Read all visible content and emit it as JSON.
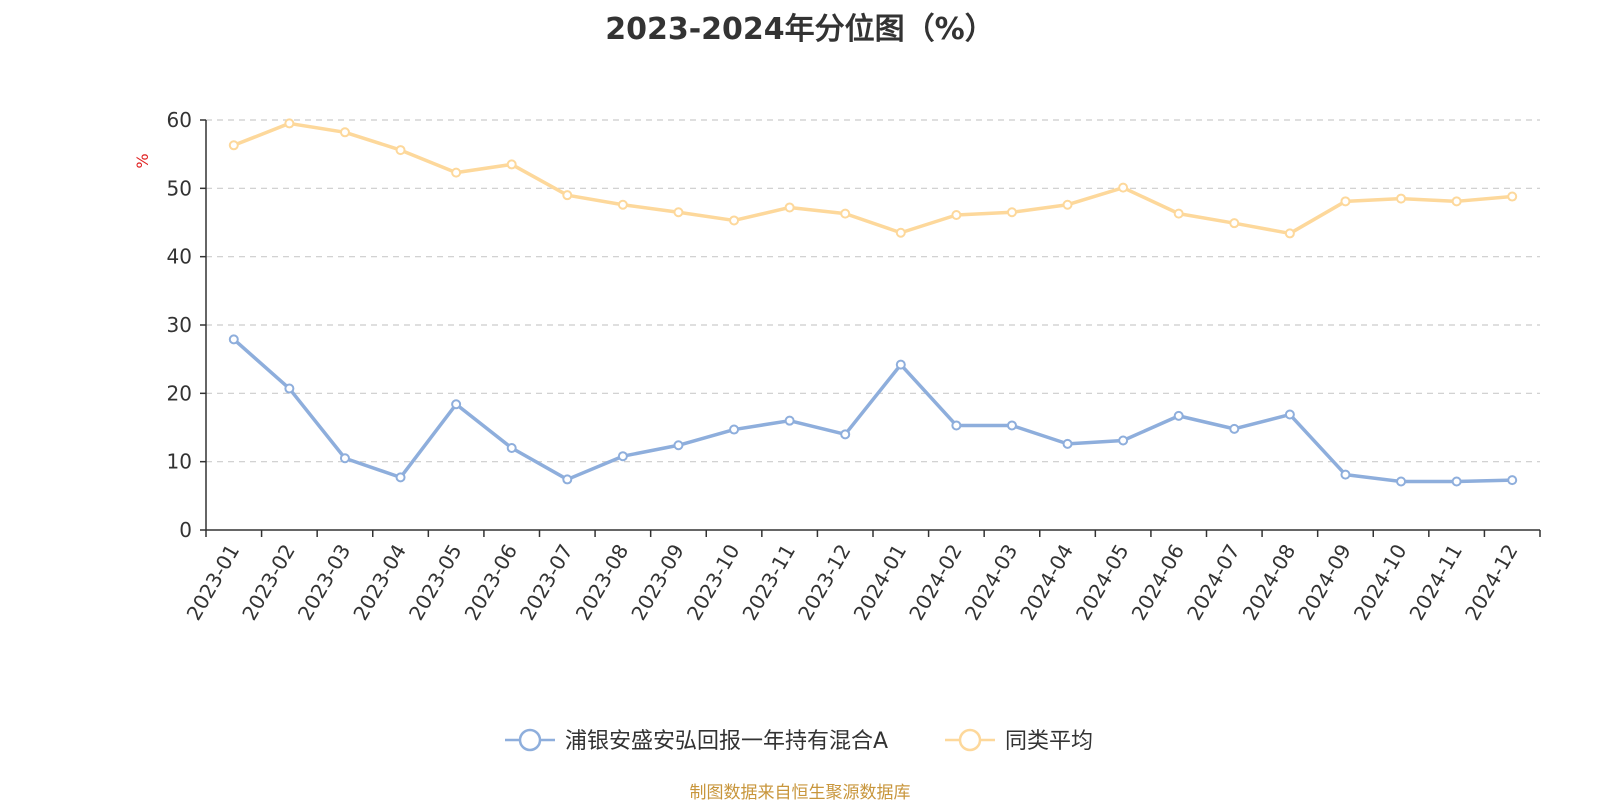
{
  "chart_data": {
    "type": "line",
    "title": "2023-2024年分位图（%）",
    "ylabel": "%",
    "ylim": [
      0,
      60
    ],
    "yticks": [
      0,
      10,
      20,
      30,
      40,
      50,
      60
    ],
    "grid": true,
    "legend_position": "bottom",
    "categories": [
      "2023-01",
      "2023-02",
      "2023-03",
      "2023-04",
      "2023-05",
      "2023-06",
      "2023-07",
      "2023-08",
      "2023-09",
      "2023-10",
      "2023-11",
      "2023-12",
      "2024-01",
      "2024-02",
      "2024-03",
      "2024-04",
      "2024-05",
      "2024-06",
      "2024-07",
      "2024-08",
      "2024-09",
      "2024-10",
      "2024-11",
      "2024-12"
    ],
    "series": [
      {
        "name": "浦银安盛安弘回报一年持有混合A",
        "color": "#8eaedc",
        "values": [
          27.9,
          20.7,
          10.5,
          7.7,
          18.4,
          12.0,
          7.4,
          10.8,
          12.4,
          14.7,
          16.0,
          14.0,
          24.2,
          15.3,
          15.3,
          12.6,
          13.1,
          16.7,
          14.8,
          16.9,
          8.1,
          7.1,
          7.1,
          7.3
        ]
      },
      {
        "name": "同类平均",
        "color": "#fdd89b",
        "values": [
          56.3,
          59.5,
          58.2,
          55.6,
          52.3,
          53.5,
          49.0,
          47.6,
          46.5,
          45.3,
          47.2,
          46.3,
          43.5,
          46.1,
          46.5,
          47.6,
          50.1,
          46.3,
          44.9,
          43.4,
          48.1,
          48.5,
          48.1,
          48.8
        ]
      }
    ]
  },
  "footer": {
    "source": "制图数据来自恒生聚源数据库"
  }
}
